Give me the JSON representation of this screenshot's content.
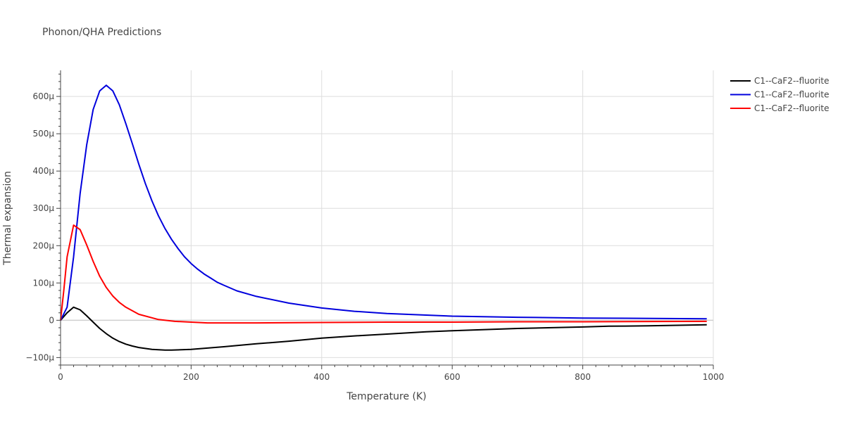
{
  "chart_data": {
    "type": "line",
    "title": "Phonon/QHA Predictions",
    "xlabel": "Temperature (K)",
    "ylabel": "Thermal expansion",
    "xlim": [
      0,
      1000
    ],
    "ylim": [
      -120,
      670
    ],
    "grid": true,
    "legend_position": "top-right",
    "x_ticks": [
      0,
      200,
      400,
      600,
      800,
      1000
    ],
    "x_tick_labels": [
      "0",
      "200",
      "400",
      "600",
      "800",
      "1000"
    ],
    "y_ticks": [
      -100,
      0,
      100,
      200,
      300,
      400,
      500,
      600
    ],
    "y_tick_labels": [
      "−100μ",
      "0",
      "100μ",
      "200μ",
      "300μ",
      "400μ",
      "500μ",
      "600μ"
    ],
    "series": [
      {
        "name": "C1--CaF2--fluorite",
        "color": "#000000",
        "x": [
          0,
          5,
          10,
          20,
          30,
          40,
          50,
          60,
          70,
          80,
          90,
          100,
          110,
          120,
          140,
          160,
          170,
          200,
          250,
          300,
          350,
          400,
          450,
          500,
          560,
          600,
          700,
          800,
          840,
          900,
          990
        ],
        "y": [
          0,
          10,
          20,
          35,
          28,
          12,
          -5,
          -22,
          -36,
          -48,
          -57,
          -64,
          -69,
          -73,
          -78,
          -80,
          -80,
          -78,
          -71,
          -63,
          -56,
          -48,
          -42,
          -37,
          -31,
          -28,
          -22,
          -18,
          -16,
          -15,
          -12
        ]
      },
      {
        "name": "C1--CaF2--fluorite",
        "color": "#0000dd",
        "x": [
          0,
          10,
          20,
          30,
          40,
          50,
          60,
          70,
          80,
          90,
          100,
          110,
          120,
          130,
          140,
          150,
          160,
          170,
          180,
          190,
          200,
          210,
          220,
          230,
          240,
          250,
          270,
          300,
          350,
          400,
          450,
          500,
          600,
          700,
          800,
          990
        ],
        "y": [
          0,
          35,
          170,
          340,
          470,
          565,
          615,
          630,
          615,
          578,
          527,
          473,
          418,
          366,
          320,
          280,
          246,
          217,
          192,
          170,
          152,
          137,
          124,
          113,
          102,
          94,
          79,
          64,
          46,
          33,
          24,
          18,
          11,
          8,
          6,
          4
        ]
      },
      {
        "name": "C1--CaF2--fluorite",
        "color": "#ff0000",
        "x": [
          0,
          5,
          10,
          20,
          30,
          40,
          50,
          60,
          70,
          80,
          90,
          100,
          120,
          150,
          175,
          200,
          225,
          250,
          300,
          400,
          500,
          600,
          700,
          800,
          990
        ],
        "y": [
          0,
          80,
          170,
          255,
          243,
          202,
          158,
          118,
          88,
          65,
          48,
          35,
          16,
          2,
          -3,
          -5,
          -7,
          -7,
          -7,
          -6,
          -5,
          -5,
          -4,
          -4,
          -3
        ]
      }
    ]
  }
}
